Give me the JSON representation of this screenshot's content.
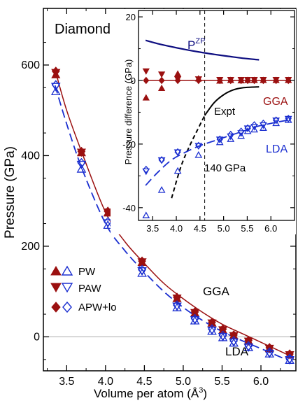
{
  "chart_data": [
    {
      "type": "scatter",
      "title": "Diamond",
      "xlabel": "Volume per atom (Å",
      "xlabel_sup": "3",
      "xlabel_close": ")",
      "ylabel": "Pressure (GPa)",
      "xlim": [
        3.2,
        6.45
      ],
      "ylim": [
        -75,
        725
      ],
      "xticks": [
        3.5,
        4.0,
        4.5,
        5.0,
        5.5,
        6.0
      ],
      "xtick_labels": [
        "3.5",
        "4.0",
        "4.5",
        "5.0",
        "5.5",
        "6.0"
      ],
      "yticks": [
        0,
        200,
        400,
        600
      ],
      "ytick_labels": [
        "0",
        "200",
        "400",
        "600"
      ],
      "legend": {
        "placement": "lower-left",
        "entries": [
          {
            "label": "PW",
            "markers": [
              "filled-triangle-up",
              "open-triangle-up"
            ]
          },
          {
            "label": "PAW",
            "markers": [
              "filled-triangle-down",
              "open-triangle-down"
            ]
          },
          {
            "label": "APW+lo",
            "markers": [
              "filled-diamond",
              "open-diamond"
            ]
          }
        ]
      },
      "series_labels": {
        "gga": "GGA",
        "lda": "LDA"
      },
      "colors": {
        "gga": "#9b1010",
        "lda": "#1b2fd0",
        "zero_line": "#aaaaaa"
      },
      "series": [
        {
          "name": "GGA",
          "style": "solid-line-filled-markers",
          "curve_x": [
            3.35,
            3.5,
            3.7,
            4.0,
            4.25,
            4.5,
            4.75,
            5.0,
            5.25,
            5.5,
            5.75,
            6.0,
            6.35
          ],
          "curve_y": [
            590,
            500,
            405,
            275,
            210,
            162,
            118,
            84,
            54,
            28,
            8,
            -12,
            -40
          ],
          "PW": {
            "x": [
              3.36,
              3.69,
              4.03,
              4.47,
              4.92,
              5.15,
              5.37,
              5.51,
              5.65,
              5.84,
              6.11,
              6.37
            ],
            "y": [
              578,
              406,
              273,
              164,
              84,
              52,
              30,
              14,
              2,
              -10,
              -26,
              -40
            ]
          },
          "PAW": {
            "x": [
              3.36,
              3.69,
              4.03,
              4.47,
              4.92,
              5.15,
              5.37,
              5.51,
              5.65,
              5.84,
              6.11,
              6.37
            ],
            "y": [
              584,
              408,
              276,
              166,
              86,
              54,
              31,
              16,
              3,
              -9,
              -25,
              -39
            ]
          },
          "APW+lo": {
            "x": [
              3.36,
              3.69,
              4.03,
              4.47,
              4.92,
              5.15,
              5.37,
              5.51,
              5.65,
              5.84,
              6.11,
              6.37
            ],
            "y": [
              586,
              409,
              277,
              167,
              87,
              55,
              32,
              17,
              4,
              -8,
              -24,
              -38
            ]
          }
        },
        {
          "name": "LDA",
          "style": "dashed-line-open-markers",
          "curve_x": [
            3.35,
            3.5,
            3.7,
            4.0,
            4.25,
            4.5,
            4.75,
            5.0,
            5.25,
            5.5,
            5.75,
            6.0,
            6.35
          ],
          "curve_y": [
            555,
            470,
            370,
            250,
            190,
            143,
            100,
            65,
            36,
            12,
            -8,
            -26,
            -52
          ],
          "PW": {
            "x": [
              3.36,
              3.69,
              4.03,
              4.47,
              4.92,
              5.15,
              5.37,
              5.51,
              5.65,
              5.84,
              6.11,
              6.37
            ],
            "y": [
              541,
              370,
              246,
              140,
              64,
              35,
              12,
              -2,
              -14,
              -24,
              -38,
              -52
            ]
          },
          "PAW": {
            "x": [
              3.36,
              3.69,
              4.03,
              4.47,
              4.92,
              5.15,
              5.37,
              5.51,
              5.65,
              5.84,
              6.11,
              6.37
            ],
            "y": [
              553,
              381,
              252,
              146,
              68,
              38,
              15,
              1,
              -11,
              -22,
              -36,
              -50
            ]
          },
          "APW+lo": {
            "x": [
              3.36,
              3.69,
              4.03,
              4.47,
              4.92,
              5.15,
              5.37,
              5.51,
              5.65,
              5.84,
              6.11,
              6.37
            ],
            "y": [
              556,
              384,
              254,
              148,
              70,
              40,
              17,
              3,
              -9,
              -20,
              -34,
              -48
            ]
          }
        }
      ]
    },
    {
      "type": "scatter",
      "inset": true,
      "xlabel": "",
      "ylabel": "Pressure difference (GPa)",
      "xlim": [
        3.2,
        6.5
      ],
      "ylim": [
        -44,
        22
      ],
      "xticks": [
        3.5,
        4.0,
        4.5,
        5.0,
        5.5,
        6.0
      ],
      "xtick_labels": [
        "3.5",
        "4.0",
        "4.5",
        "5.0",
        "5.5",
        "6.0"
      ],
      "yticks": [
        -40,
        -20,
        0,
        20
      ],
      "ytick_labels": [
        "-40",
        "-20",
        "0",
        "20"
      ],
      "vline_x": 4.6,
      "annotations": {
        "pzp_base": "P",
        "pzp_sup": "ZP",
        "expt": "Expt",
        "gga": "GGA",
        "lda": "LDA",
        "pressure_marker": "140 GPa"
      },
      "colors": {
        "zp": "#0d0d80",
        "gga": "#9b1010",
        "lda": "#1b2fd0",
        "expt": "#000000"
      },
      "zero_point_curve": {
        "x": [
          3.35,
          3.6,
          3.9,
          4.2,
          4.5,
          4.8,
          5.1,
          5.4,
          5.75
        ],
        "y": [
          12.6,
          11.6,
          10.6,
          9.7,
          8.9,
          8.2,
          7.6,
          7.0,
          6.5
        ]
      },
      "expt_curve": {
        "x": [
          3.9,
          4.1,
          4.3,
          4.5,
          4.6,
          4.8,
          5.0,
          5.2,
          5.4,
          5.6,
          5.75
        ],
        "y": [
          -37,
          -27,
          -20,
          -14,
          -11,
          -7,
          -4.5,
          -3,
          -2.3,
          -2.1,
          -2.0
        ]
      },
      "gga_reference_line": {
        "x": [
          3.35,
          6.4
        ],
        "y": [
          0,
          0
        ]
      },
      "lda_curve": {
        "x": [
          3.35,
          3.6,
          3.9,
          4.2,
          4.5,
          4.8,
          5.1,
          5.4,
          5.7,
          6.0,
          6.35
        ],
        "y": [
          -33,
          -29,
          -25,
          -22.5,
          -20.5,
          -19,
          -17.5,
          -16,
          -14.5,
          -13.5,
          -12.5
        ]
      },
      "gga_points": {
        "PW": {
          "x": [
            3.36,
            3.69,
            4.03,
            4.47,
            4.92,
            5.15,
            5.37,
            5.51,
            5.65,
            5.84,
            6.11,
            6.37
          ],
          "y": [
            -5.5,
            -2.5,
            2.0,
            0.5,
            -0.2,
            0.0,
            -0.1,
            0.0,
            0.0,
            0.0,
            0.0,
            0.0
          ]
        },
        "PAW": {
          "x": [
            3.36,
            3.69,
            4.03,
            4.47,
            4.92,
            5.15,
            5.37,
            5.51,
            5.65,
            5.84,
            6.11,
            6.37
          ],
          "y": [
            3.0,
            2.0,
            0.5,
            0.5,
            0.3,
            0.3,
            0.3,
            0.3,
            0.3,
            0.3,
            0.3,
            0.3
          ]
        },
        "APW+lo": {
          "x": [
            3.36,
            3.69,
            4.03,
            4.47,
            4.92,
            5.15,
            5.37,
            5.51,
            5.65,
            5.84,
            6.11,
            6.37
          ],
          "y": [
            0.0,
            0.0,
            0.0,
            0.0,
            0.0,
            0.0,
            0.0,
            0.0,
            0.0,
            0.0,
            0.0,
            0.0
          ]
        }
      },
      "lda_points": {
        "PW": {
          "x": [
            3.36,
            3.69,
            4.03,
            4.47,
            4.92,
            5.15,
            5.37,
            5.51,
            5.65,
            5.84,
            6.11,
            6.37
          ],
          "y": [
            -42.5,
            -34.5,
            -28.5,
            -23.5,
            -19.5,
            -18.5,
            -17.5,
            -16.0,
            -15.5,
            -15.0,
            -13.5,
            -12.5
          ]
        },
        "PAW": {
          "x": [
            3.36,
            3.69,
            4.03,
            4.47,
            4.92,
            5.15,
            5.37,
            5.51,
            5.65,
            5.84,
            6.11,
            6.37
          ],
          "y": [
            -28.5,
            -25.0,
            -22.5,
            -20.5,
            -18.5,
            -17.5,
            -16.5,
            -15.0,
            -14.5,
            -14.0,
            -12.5,
            -12.0
          ]
        },
        "APW+lo": {
          "x": [
            3.36,
            3.69,
            4.03,
            4.47,
            4.92,
            5.15,
            5.37,
            5.51,
            5.65,
            5.84,
            6.11,
            6.37
          ],
          "y": [
            -28.0,
            -25.0,
            -22.5,
            -20.5,
            -18.5,
            -17.0,
            -16.0,
            -15.0,
            -14.0,
            -13.5,
            -12.5,
            -12.0
          ]
        }
      }
    }
  ]
}
